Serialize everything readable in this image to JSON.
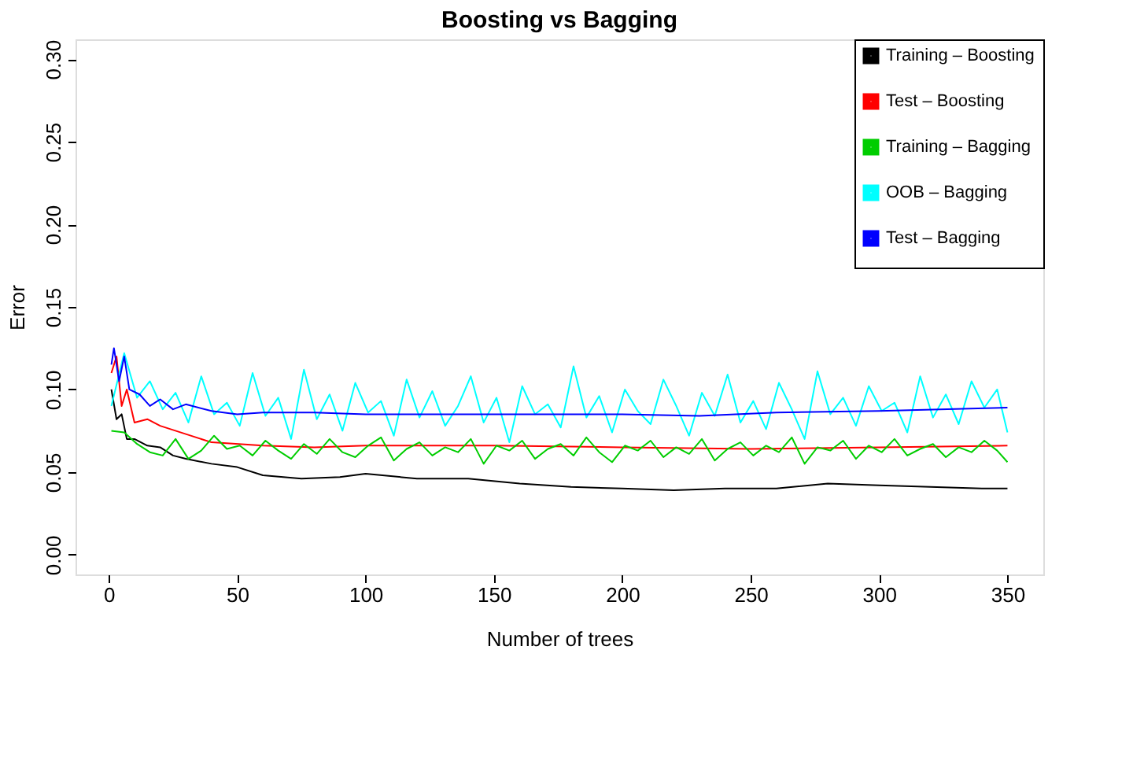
{
  "chart_data": {
    "type": "line",
    "title": "Boosting vs Bagging",
    "xlabel": "Number of trees",
    "ylabel": "Error",
    "xlim": [
      -12.96,
      363.96
    ],
    "xticks": [
      0,
      50,
      100,
      150,
      200,
      250,
      300,
      350
    ],
    "ylim": [
      -0.012,
      0.312
    ],
    "yticks": [
      {
        "value": 0,
        "label": "0.00"
      },
      {
        "value": 0.05,
        "label": "0.05"
      },
      {
        "value": 0.1,
        "label": "0.10"
      },
      {
        "value": 0.15,
        "label": "0.15"
      },
      {
        "value": 0.2,
        "label": "0.20"
      },
      {
        "value": 0.25,
        "label": "0.25"
      },
      {
        "value": 0.3,
        "label": "0.30"
      }
    ],
    "grid": false,
    "legend": "top right",
    "marker": "none",
    "line_style": "solid",
    "series": [
      {
        "name": "Training – Boosting",
        "color": "#000000",
        "x": [
          1,
          3,
          5,
          7,
          10,
          15,
          20,
          25,
          30,
          40,
          50,
          60,
          75,
          90,
          100,
          120,
          140,
          160,
          180,
          200,
          220,
          240,
          260,
          280,
          300,
          320,
          340,
          350
        ],
        "values": [
          0.1,
          0.082,
          0.085,
          0.07,
          0.07,
          0.066,
          0.065,
          0.06,
          0.058,
          0.055,
          0.053,
          0.048,
          0.046,
          0.047,
          0.049,
          0.046,
          0.046,
          0.043,
          0.041,
          0.04,
          0.039,
          0.04,
          0.04,
          0.043,
          0.042,
          0.041,
          0.04,
          0.04
        ]
      },
      {
        "name": "Test – Boosting",
        "color": "#ff0000",
        "x": [
          1,
          3,
          5,
          7,
          10,
          15,
          20,
          30,
          40,
          60,
          80,
          100,
          150,
          200,
          250,
          300,
          350
        ],
        "values": [
          0.11,
          0.12,
          0.09,
          0.1,
          0.08,
          0.082,
          0.078,
          0.073,
          0.068,
          0.066,
          0.065,
          0.066,
          0.066,
          0.065,
          0.064,
          0.065,
          0.066
        ]
      },
      {
        "name": "Training – Bagging",
        "color": "#00cd00",
        "x": [
          1,
          6,
          11,
          16,
          21,
          26,
          31,
          36,
          41,
          46,
          51,
          56,
          61,
          66,
          71,
          76,
          81,
          86,
          91,
          96,
          101,
          106,
          111,
          116,
          121,
          126,
          131,
          136,
          141,
          146,
          151,
          156,
          161,
          166,
          171,
          176,
          181,
          186,
          191,
          196,
          201,
          206,
          211,
          216,
          221,
          226,
          231,
          236,
          241,
          246,
          251,
          256,
          261,
          266,
          271,
          276,
          281,
          286,
          291,
          296,
          301,
          306,
          311,
          316,
          321,
          326,
          331,
          336,
          341,
          346,
          350
        ],
        "values": [
          0.075,
          0.074,
          0.067,
          0.062,
          0.06,
          0.07,
          0.058,
          0.063,
          0.072,
          0.064,
          0.066,
          0.06,
          0.069,
          0.063,
          0.058,
          0.067,
          0.061,
          0.07,
          0.062,
          0.059,
          0.066,
          0.071,
          0.057,
          0.064,
          0.068,
          0.06,
          0.065,
          0.062,
          0.07,
          0.055,
          0.066,
          0.063,
          0.069,
          0.058,
          0.064,
          0.067,
          0.06,
          0.071,
          0.062,
          0.056,
          0.066,
          0.063,
          0.069,
          0.059,
          0.065,
          0.061,
          0.07,
          0.057,
          0.064,
          0.068,
          0.06,
          0.066,
          0.062,
          0.071,
          0.055,
          0.065,
          0.063,
          0.069,
          0.058,
          0.066,
          0.062,
          0.07,
          0.06,
          0.064,
          0.067,
          0.059,
          0.065,
          0.062,
          0.069,
          0.063,
          0.056
        ]
      },
      {
        "name": "OOB – Bagging",
        "color": "#00ffff",
        "x": [
          1,
          6,
          11,
          16,
          21,
          26,
          31,
          36,
          41,
          46,
          51,
          56,
          61,
          66,
          71,
          76,
          81,
          86,
          91,
          96,
          101,
          106,
          111,
          116,
          121,
          126,
          131,
          136,
          141,
          146,
          151,
          156,
          161,
          166,
          171,
          176,
          181,
          186,
          191,
          196,
          201,
          206,
          211,
          216,
          221,
          226,
          231,
          236,
          241,
          246,
          251,
          256,
          261,
          266,
          271,
          276,
          281,
          286,
          291,
          296,
          301,
          306,
          311,
          316,
          321,
          326,
          331,
          336,
          341,
          346,
          350
        ],
        "values": [
          0.09,
          0.122,
          0.095,
          0.105,
          0.088,
          0.098,
          0.08,
          0.108,
          0.085,
          0.092,
          0.078,
          0.11,
          0.084,
          0.095,
          0.07,
          0.112,
          0.082,
          0.097,
          0.075,
          0.104,
          0.086,
          0.093,
          0.072,
          0.106,
          0.083,
          0.099,
          0.078,
          0.09,
          0.108,
          0.08,
          0.095,
          0.068,
          0.102,
          0.085,
          0.091,
          0.077,
          0.114,
          0.083,
          0.096,
          0.074,
          0.1,
          0.087,
          0.079,
          0.106,
          0.09,
          0.072,
          0.098,
          0.084,
          0.109,
          0.08,
          0.093,
          0.076,
          0.104,
          0.088,
          0.07,
          0.111,
          0.085,
          0.095,
          0.078,
          0.102,
          0.087,
          0.092,
          0.074,
          0.108,
          0.083,
          0.097,
          0.079,
          0.105,
          0.089,
          0.1,
          0.074
        ]
      },
      {
        "name": "Test – Bagging",
        "color": "#0000ff",
        "x": [
          1,
          2,
          4,
          6,
          8,
          12,
          16,
          20,
          25,
          30,
          40,
          50,
          60,
          80,
          100,
          150,
          200,
          230,
          260,
          300,
          350
        ],
        "values": [
          0.115,
          0.125,
          0.105,
          0.12,
          0.1,
          0.097,
          0.09,
          0.094,
          0.088,
          0.091,
          0.087,
          0.085,
          0.086,
          0.086,
          0.085,
          0.085,
          0.085,
          0.084,
          0.086,
          0.087,
          0.089
        ]
      }
    ]
  }
}
